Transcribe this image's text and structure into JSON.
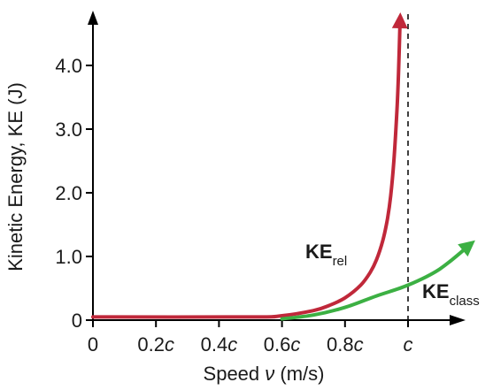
{
  "chart_data": {
    "type": "line",
    "xlabel_prefix": "Speed ",
    "xlabel_symbol": "ν",
    "xlabel_suffix": " (m/s)",
    "ylabel": "Kinetic Energy, KE (J)",
    "x_ticks": [
      {
        "value": 0,
        "num": "0",
        "sym": ""
      },
      {
        "value": 0.2,
        "num": "0.2",
        "sym": "c"
      },
      {
        "value": 0.4,
        "num": "0.4",
        "sym": "c"
      },
      {
        "value": 0.6,
        "num": "0.6",
        "sym": "c"
      },
      {
        "value": 0.8,
        "num": "0.8",
        "sym": "c"
      },
      {
        "value": 1.0,
        "num": "",
        "sym": "c"
      }
    ],
    "y_ticks": [
      {
        "value": 0,
        "label": "0"
      },
      {
        "value": 1.0,
        "label": "1.0"
      },
      {
        "value": 2.0,
        "label": "2.0"
      },
      {
        "value": 3.0,
        "label": "3.0"
      },
      {
        "value": 4.0,
        "label": "4.0"
      }
    ],
    "xlim": [
      0,
      1.16
    ],
    "ylim": [
      0,
      4.8
    ],
    "asymptote_x": 1.0,
    "series": [
      {
        "name_main": "KE",
        "name_sub": "rel",
        "color": "#c0283a",
        "x": [
          0,
          0.5,
          0.6,
          0.7,
          0.75,
          0.8,
          0.85,
          0.88,
          0.9,
          0.92,
          0.935,
          0.945,
          0.955,
          0.965,
          0.97,
          0.975
        ],
        "y": [
          0.05,
          0.05,
          0.07,
          0.15,
          0.23,
          0.35,
          0.55,
          0.75,
          0.95,
          1.25,
          1.6,
          1.95,
          2.5,
          3.3,
          3.9,
          4.75
        ]
      },
      {
        "name_main": "KE",
        "name_sub": "class",
        "color": "#3cb043",
        "x": [
          0.6,
          0.7,
          0.8,
          0.9,
          1.0,
          1.1,
          1.2
        ],
        "y": [
          0.02,
          0.08,
          0.2,
          0.38,
          0.55,
          0.8,
          1.2
        ]
      }
    ]
  }
}
